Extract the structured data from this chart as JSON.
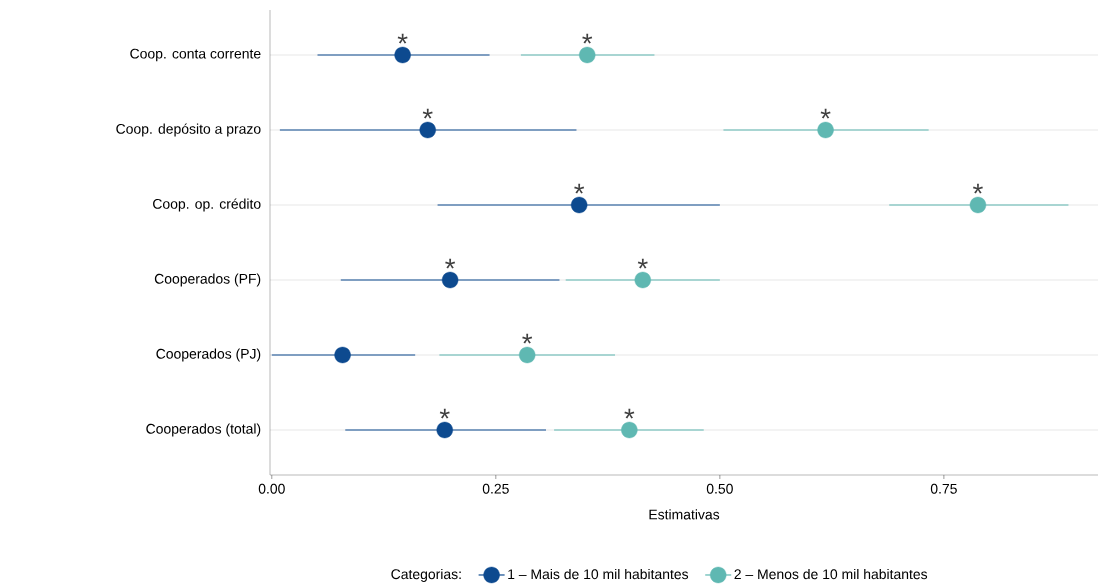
{
  "chart_data": {
    "type": "scatter",
    "orientation": "horizontal",
    "xlabel": "Estimativas",
    "legend_title": "Categorias:",
    "categories": [
      "Coop. conta corrente",
      "Coop. depósito a prazo",
      "Coop. op. crédito",
      "Cooperados (PF)",
      "Cooperados (PJ)",
      "Cooperados (total)"
    ],
    "series": [
      {
        "name": "1 – Mais de 10 mil habitantes",
        "color": "#0d4a8f",
        "values": [
          0.146,
          0.174,
          0.343,
          0.199,
          0.079,
          0.193
        ],
        "errors": [
          [
            0.051,
            0.243
          ],
          [
            0.009,
            0.34
          ],
          [
            0.185,
            0.5
          ],
          [
            0.077,
            0.321
          ],
          [
            0.0,
            0.16
          ],
          [
            0.082,
            0.306
          ]
        ]
      },
      {
        "name": "2 – Menos de 10 mil habitantes",
        "color": "#5fb8b2",
        "values": [
          0.352,
          0.618,
          0.788,
          0.414,
          0.285,
          0.399
        ],
        "errors": [
          [
            0.278,
            0.427
          ],
          [
            0.504,
            0.733
          ],
          [
            0.689,
            0.889
          ],
          [
            0.328,
            0.5
          ],
          [
            0.187,
            0.383
          ],
          [
            0.315,
            0.482
          ]
        ]
      }
    ],
    "xlim": [
      -0.002,
      0.922
    ],
    "xticks": [
      {
        "value": 0,
        "label": "0.00"
      },
      {
        "value": 0.25,
        "label": "0.25"
      },
      {
        "value": 0.5,
        "label": "0.50"
      },
      {
        "value": 0.75,
        "label": "0.75"
      }
    ],
    "grid": "y",
    "legend": "bottom",
    "marker": "circle",
    "annotations": [
      {
        "text": "*",
        "x": 0.146,
        "y": "Coop. conta corrente"
      },
      {
        "text": "*",
        "x": 0.352,
        "y": "Coop. conta corrente"
      },
      {
        "text": "*",
        "x": 0.174,
        "y": "Coop. depósito a prazo"
      },
      {
        "text": "*",
        "x": 0.618,
        "y": "Coop. depósito a prazo"
      },
      {
        "text": "*",
        "x": 0.343,
        "y": "Coop. op. crédito"
      },
      {
        "text": "*",
        "x": 0.788,
        "y": "Coop. op. crédito"
      },
      {
        "text": "*",
        "x": 0.199,
        "y": "Cooperados (PF)"
      },
      {
        "text": "*",
        "x": 0.414,
        "y": "Cooperados (PF)"
      },
      {
        "text": "*",
        "x": 0.285,
        "y": "Cooperados (PJ)"
      },
      {
        "text": "*",
        "x": 0.193,
        "y": "Cooperados (total)"
      },
      {
        "text": "*",
        "x": 0.399,
        "y": "Cooperados (total)"
      }
    ]
  }
}
